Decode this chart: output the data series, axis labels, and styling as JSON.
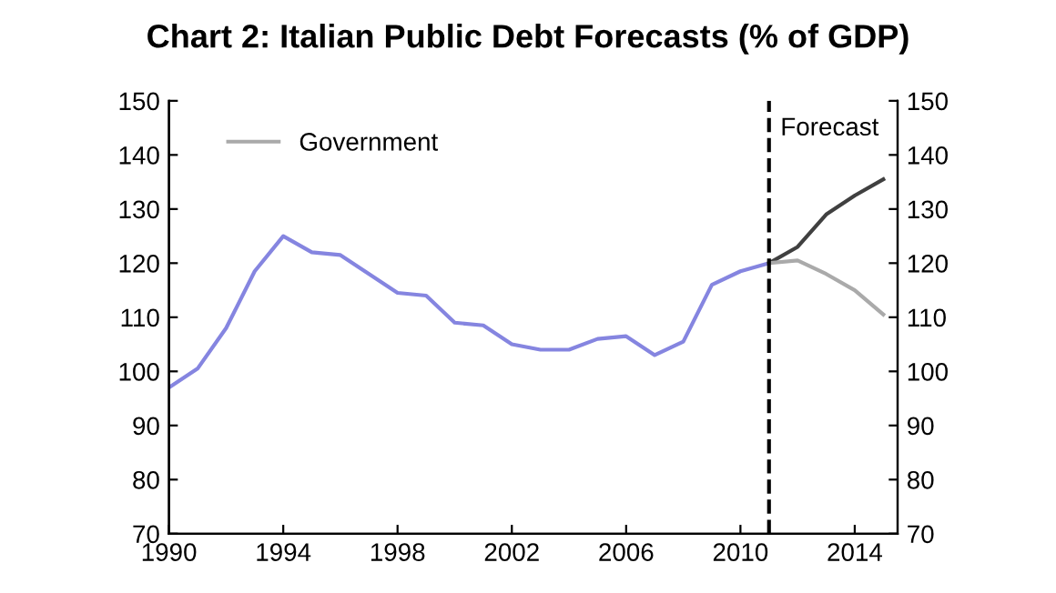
{
  "chart_data": {
    "type": "line",
    "title": "Chart 2: Italian Public Debt Forecasts (% of GDP)",
    "series": [
      {
        "color": "#8585e0",
        "x": [
          1990,
          1991,
          1992,
          1993,
          1994,
          1995,
          1996,
          1997,
          1998,
          1999,
          2000,
          2001,
          2002,
          2003,
          2004,
          2005,
          2006,
          2007,
          2008,
          2009,
          2010,
          2011
        ],
        "values": [
          97,
          100.5,
          108,
          118.5,
          125,
          122,
          121.5,
          118,
          114.5,
          114,
          109,
          108.5,
          105,
          104,
          104,
          106,
          106.5,
          103,
          105.5,
          116,
          118.5,
          120
        ]
      },
      {
        "color": "#404040",
        "x": [
          2011,
          2012,
          2013,
          2014,
          2015
        ],
        "values": [
          120,
          123,
          129,
          132.5,
          135.5
        ]
      },
      {
        "name": "Government",
        "color": "#aaaaaa",
        "x": [
          2011,
          2012,
          2013,
          2014,
          2015
        ],
        "values": [
          120,
          120.5,
          118,
          115,
          110.5
        ]
      }
    ],
    "xlim": [
      1990,
      2015.5
    ],
    "xticks": [
      1990,
      1994,
      1998,
      2002,
      2006,
      2010,
      2014
    ],
    "ylim": [
      70,
      150
    ],
    "yticks": [
      70,
      80,
      90,
      100,
      110,
      120,
      130,
      140,
      150
    ],
    "y2lim": [
      70,
      150
    ],
    "y2ticks": [
      70,
      80,
      90,
      100,
      110,
      120,
      130,
      140,
      150
    ],
    "ref_lines": [
      {
        "axis": "x",
        "value": 2011,
        "label": "Forecast",
        "color": "#000000",
        "line_style": "dashed"
      }
    ],
    "legend": "top left",
    "grid": false,
    "line_style": "solid",
    "marker": "none"
  }
}
